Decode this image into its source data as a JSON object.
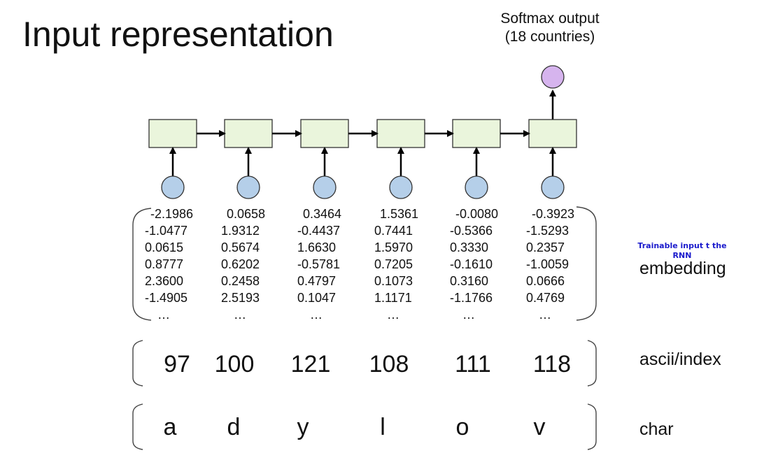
{
  "title": "Input representation",
  "softmax": {
    "line1": "Softmax output",
    "line2": "(18 countries)"
  },
  "annotation": {
    "line1": "Trainable input t the",
    "line2": "RNN"
  },
  "row_labels": {
    "embedding": "embedding",
    "ascii": "ascii/index",
    "char": "char"
  },
  "columns": [
    {
      "char": "a",
      "ascii": "97",
      "embedding": [
        "-2.1986",
        "-1.0477",
        "0.0615",
        "0.8777",
        "2.3600",
        "-1.4905",
        "…"
      ]
    },
    {
      "char": "d",
      "ascii": "100",
      "embedding": [
        "0.0658",
        "1.9312",
        "0.5674",
        "0.6202",
        "0.2458",
        "2.5193",
        "…"
      ]
    },
    {
      "char": "y",
      "ascii": "121",
      "embedding": [
        "0.3464",
        "-0.4437",
        "1.6630",
        "-0.5781",
        "0.4797",
        "0.1047",
        "…"
      ]
    },
    {
      "char": "l",
      "ascii": "108",
      "embedding": [
        "1.5361",
        "0.7441",
        "1.5970",
        "0.7205",
        "0.1073",
        "1.1171",
        "…"
      ]
    },
    {
      "char": "o",
      "ascii": "111",
      "embedding": [
        "-0.0080",
        "-0.5366",
        "0.3330",
        "-0.1610",
        "0.3160",
        "-1.1766",
        "…"
      ]
    },
    {
      "char": "v",
      "ascii": "118",
      "embedding": [
        "-0.3923",
        "-1.5293",
        "0.2357",
        "-1.0059",
        "0.0666",
        "0.4769",
        "…"
      ]
    }
  ],
  "colors": {
    "rnn_cell": "#eaf5dc",
    "input_node": "#b5cfe9",
    "output_node": "#d6b4ee",
    "annotation": "#1a1acc"
  }
}
